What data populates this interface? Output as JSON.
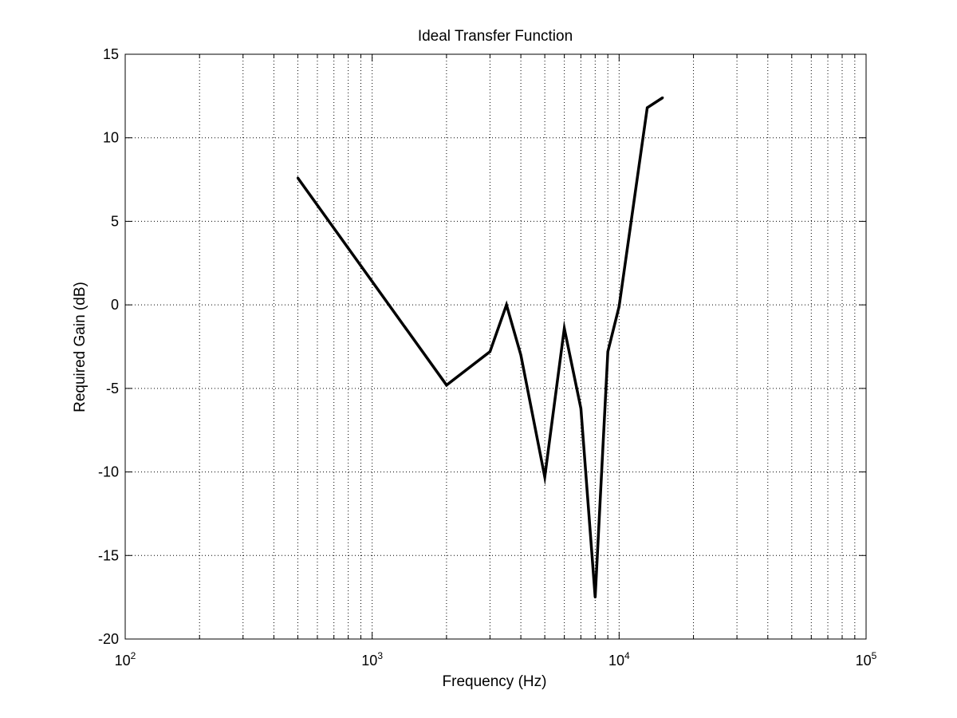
{
  "chart_data": {
    "type": "line",
    "title": "Ideal Transfer Function",
    "xlabel": "Frequency (Hz)",
    "ylabel": "Required Gain (dB)",
    "x_scale": "log",
    "xlim": [
      100,
      100000
    ],
    "ylim": [
      -20,
      15
    ],
    "grid": true,
    "x_ticks": [
      {
        "value": 100,
        "base": "10",
        "exp": "2"
      },
      {
        "value": 1000,
        "base": "10",
        "exp": "3"
      },
      {
        "value": 10000,
        "base": "10",
        "exp": "4"
      },
      {
        "value": 100000,
        "base": "10",
        "exp": "5"
      }
    ],
    "y_ticks": [
      15,
      10,
      5,
      0,
      -5,
      -10,
      -15,
      -20
    ],
    "y_tick_labels": [
      "15",
      "10",
      "5",
      "0",
      "-5",
      "-10",
      "-15",
      "-20"
    ],
    "series": [
      {
        "color": "#000000",
        "points": [
          {
            "x": 500,
            "y": 7.6
          },
          {
            "x": 2000,
            "y": -4.8
          },
          {
            "x": 3000,
            "y": -2.8
          },
          {
            "x": 3500,
            "y": 0
          },
          {
            "x": 4000,
            "y": -3.0
          },
          {
            "x": 5000,
            "y": -10.3
          },
          {
            "x": 6000,
            "y": -1.4
          },
          {
            "x": 7000,
            "y": -6.2
          },
          {
            "x": 8000,
            "y": -17.5
          },
          {
            "x": 9000,
            "y": -2.8
          },
          {
            "x": 10000,
            "y": -0.1
          },
          {
            "x": 13000,
            "y": 11.8
          },
          {
            "x": 15000,
            "y": 12.4
          }
        ]
      }
    ]
  }
}
